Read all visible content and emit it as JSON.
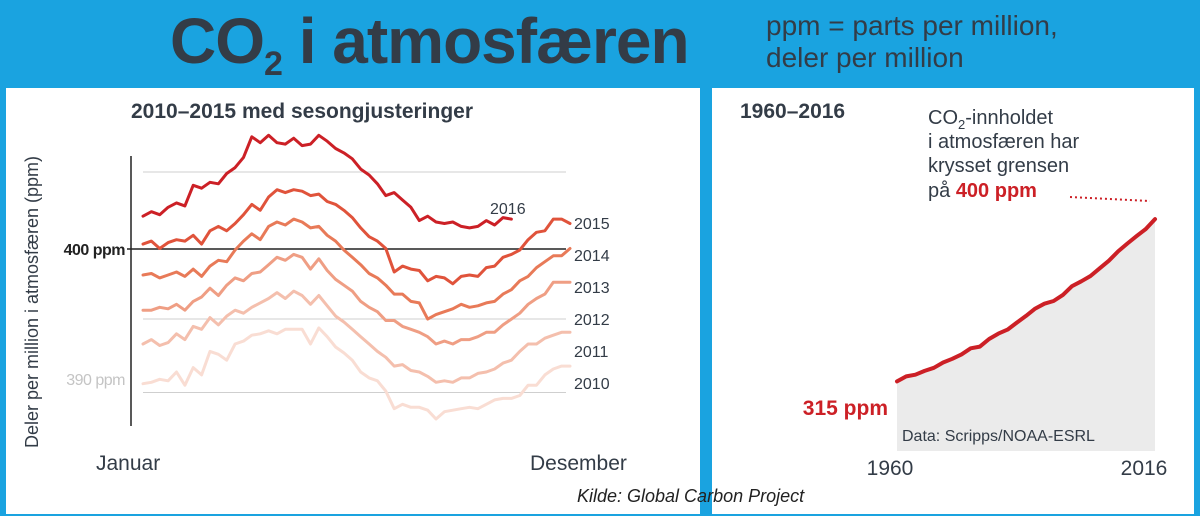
{
  "header": {
    "title_main": "CO",
    "title_sub": "2",
    "title_rest": " i atmosfæren",
    "ppm_line1": "ppm = parts per million,",
    "ppm_line2": "deler per million"
  },
  "source": "Kilde: Global Carbon Project",
  "colors": {
    "frame": "#1aa3e0",
    "title": "#333c47",
    "accent_red": "#cc2026",
    "area_fill": "#ebebeb",
    "series": [
      "#cc2026",
      "#e0533b",
      "#e87a58",
      "#ef9e84",
      "#f4bfad",
      "#f9ddd3"
    ]
  },
  "chart_data": [
    {
      "type": "line",
      "title": "2010–2015 med sesongjusteringer",
      "ylabel": "Deler per million i atmosfæren (ppm)",
      "xlabel_start": "Januar",
      "xlabel_end": "Desember",
      "ylim": [
        386.5,
        406.5
      ],
      "ytick_labels": [
        {
          "value": 400,
          "label": "400 ppm"
        },
        {
          "value": 390,
          "label": "390 ppm"
        }
      ],
      "gridlines": [
        390,
        395,
        405
      ],
      "reference_line": 400,
      "series": [
        {
          "name": "2016",
          "values": [
            402.0,
            402.3,
            402.1,
            402.6,
            402.9,
            402.7,
            404.1,
            403.9,
            404.3,
            404.2,
            404.9,
            405.3,
            406.0,
            407.4,
            407.0,
            407.5,
            407.0,
            406.9,
            407.3,
            406.8,
            406.9,
            407.5,
            407.1,
            406.6,
            406.3,
            405.9,
            405.2,
            404.8,
            404.2,
            403.4,
            403.6,
            403.1,
            402.6,
            401.7,
            402.0,
            401.6,
            401.5,
            401.6,
            401.3,
            401.2,
            401.3,
            401.7,
            401.4,
            401.9,
            401.8
          ]
        },
        {
          "name": "2015",
          "values": [
            400.1,
            400.3,
            399.8,
            400.2,
            400.4,
            400.3,
            400.7,
            400.1,
            401.0,
            401.3,
            401.0,
            401.5,
            402.1,
            402.8,
            402.4,
            403.3,
            403.8,
            403.6,
            403.8,
            403.7,
            403.4,
            403.5,
            403.0,
            402.8,
            402.4,
            401.9,
            401.2,
            400.6,
            400.3,
            399.8,
            398.2,
            398.6,
            398.4,
            398.3,
            397.6,
            397.9,
            397.8,
            397.4,
            397.9,
            398.0,
            397.9,
            398.5,
            398.6,
            399.2,
            399.4,
            399.7,
            400.4,
            400.9,
            401.0,
            401.8,
            401.8,
            401.5
          ]
        },
        {
          "name": "2014",
          "values": [
            398.0,
            398.1,
            397.8,
            398.0,
            398.2,
            397.9,
            398.4,
            397.9,
            398.6,
            399.0,
            398.9,
            399.7,
            400.3,
            400.8,
            400.4,
            401.3,
            401.6,
            401.4,
            401.8,
            401.6,
            401.2,
            401.3,
            400.7,
            400.3,
            399.7,
            399.2,
            398.7,
            398.1,
            397.8,
            397.3,
            396.7,
            396.7,
            396.2,
            396.1,
            395.0,
            395.3,
            395.5,
            395.7,
            396.0,
            395.8,
            395.9,
            396.1,
            396.2,
            396.7,
            397.0,
            397.6,
            397.9,
            398.5,
            398.9,
            399.3,
            399.3,
            399.8
          ]
        },
        {
          "name": "2013",
          "values": [
            395.6,
            395.6,
            395.8,
            395.7,
            396.0,
            395.6,
            396.2,
            396.5,
            397.1,
            396.6,
            397.3,
            397.8,
            397.6,
            398.1,
            398.2,
            398.7,
            399.2,
            399.0,
            399.4,
            399.2,
            398.4,
            399.1,
            398.3,
            397.7,
            397.3,
            396.9,
            396.2,
            395.8,
            395.5,
            394.9,
            394.9,
            394.5,
            394.3,
            394.1,
            393.8,
            393.3,
            393.5,
            393.3,
            393.6,
            393.6,
            393.8,
            394.1,
            394.1,
            394.6,
            395.0,
            395.4,
            396.0,
            396.4,
            396.7,
            397.5,
            397.5,
            397.5
          ]
        },
        {
          "name": "2012",
          "values": [
            393.3,
            393.6,
            393.2,
            393.4,
            394.0,
            393.6,
            394.5,
            394.3,
            395.1,
            394.6,
            395.2,
            395.6,
            395.4,
            395.8,
            396.1,
            396.4,
            396.8,
            396.4,
            396.9,
            396.6,
            396.0,
            396.6,
            395.9,
            395.2,
            394.8,
            394.3,
            393.8,
            393.3,
            392.8,
            392.4,
            391.8,
            391.9,
            391.5,
            391.4,
            391.1,
            390.7,
            390.8,
            390.7,
            391.0,
            391.0,
            391.3,
            391.4,
            391.6,
            392.0,
            392.2,
            392.8,
            393.3,
            393.3,
            393.7,
            393.9,
            394.1,
            394.1
          ]
        },
        {
          "name": "2011",
          "values": [
            390.6,
            390.7,
            390.9,
            390.8,
            391.4,
            390.5,
            391.7,
            391.2,
            392.8,
            392.6,
            392.2,
            393.3,
            393.5,
            393.9,
            394.0,
            394.2,
            394.0,
            394.3,
            394.3,
            394.3,
            393.3,
            394.4,
            393.8,
            393.1,
            392.7,
            392.2,
            391.4,
            391.0,
            390.8,
            390.1,
            388.9,
            389.2,
            389.0,
            389.0,
            388.8,
            388.2,
            388.7,
            388.8,
            388.9,
            389.0,
            388.9,
            389.2,
            389.5,
            389.6,
            389.6,
            389.8,
            390.5,
            390.5,
            391.2,
            391.6,
            391.8,
            391.8
          ]
        },
        {
          "name": "2010",
          "values": [
            388.6,
            388.7,
            388.9,
            389.1,
            389.6,
            389.3,
            390.3,
            389.6,
            390.3,
            390.9,
            391.2,
            391.0,
            391.7,
            392.7,
            392.9,
            392.3,
            393.2,
            392.5,
            392.7,
            392.6,
            391.3,
            392.5,
            392.0,
            390.9,
            390.3,
            389.8,
            389.3,
            389.1,
            388.8,
            388.5,
            387.9,
            387.6,
            388.2,
            387.8,
            387.8,
            386.6,
            387.4,
            387.2,
            387.1,
            387.4,
            387.5,
            387.8,
            388.2,
            388.3,
            388.6,
            388.9,
            389.3,
            389.3,
            389.9,
            389.9,
            389.9,
            390.0
          ]
        }
      ]
    },
    {
      "type": "area",
      "title": "1960–2016",
      "x_range": [
        1960,
        2016
      ],
      "xtick_labels": [
        "1960",
        "2016"
      ],
      "ylim": [
        300,
        410
      ],
      "start_label": "315 ppm",
      "annotation_parts": [
        "CO",
        "2",
        "-innholdet",
        "i atmosfæren har",
        "krysset grensen",
        "på ",
        "400 ppm"
      ],
      "credit": "Data: Scripps/NOAA-ESRL",
      "x": [
        1960,
        1962,
        1964,
        1966,
        1968,
        1970,
        1972,
        1974,
        1976,
        1978,
        1980,
        1982,
        1984,
        1986,
        1988,
        1990,
        1992,
        1994,
        1996,
        1998,
        2000,
        2002,
        2004,
        2006,
        2008,
        2010,
        2012,
        2014,
        2016
      ],
      "values": [
        315.0,
        317.6,
        318.5,
        320.5,
        322.1,
        324.9,
        326.8,
        329.1,
        332.3,
        333.2,
        337.2,
        340.0,
        342.1,
        345.8,
        349.3,
        353.1,
        355.7,
        357.1,
        360.3,
        364.9,
        367.4,
        370.2,
        374.2,
        378.2,
        383.1,
        387.2,
        391.1,
        394.8,
        400.0
      ]
    }
  ]
}
